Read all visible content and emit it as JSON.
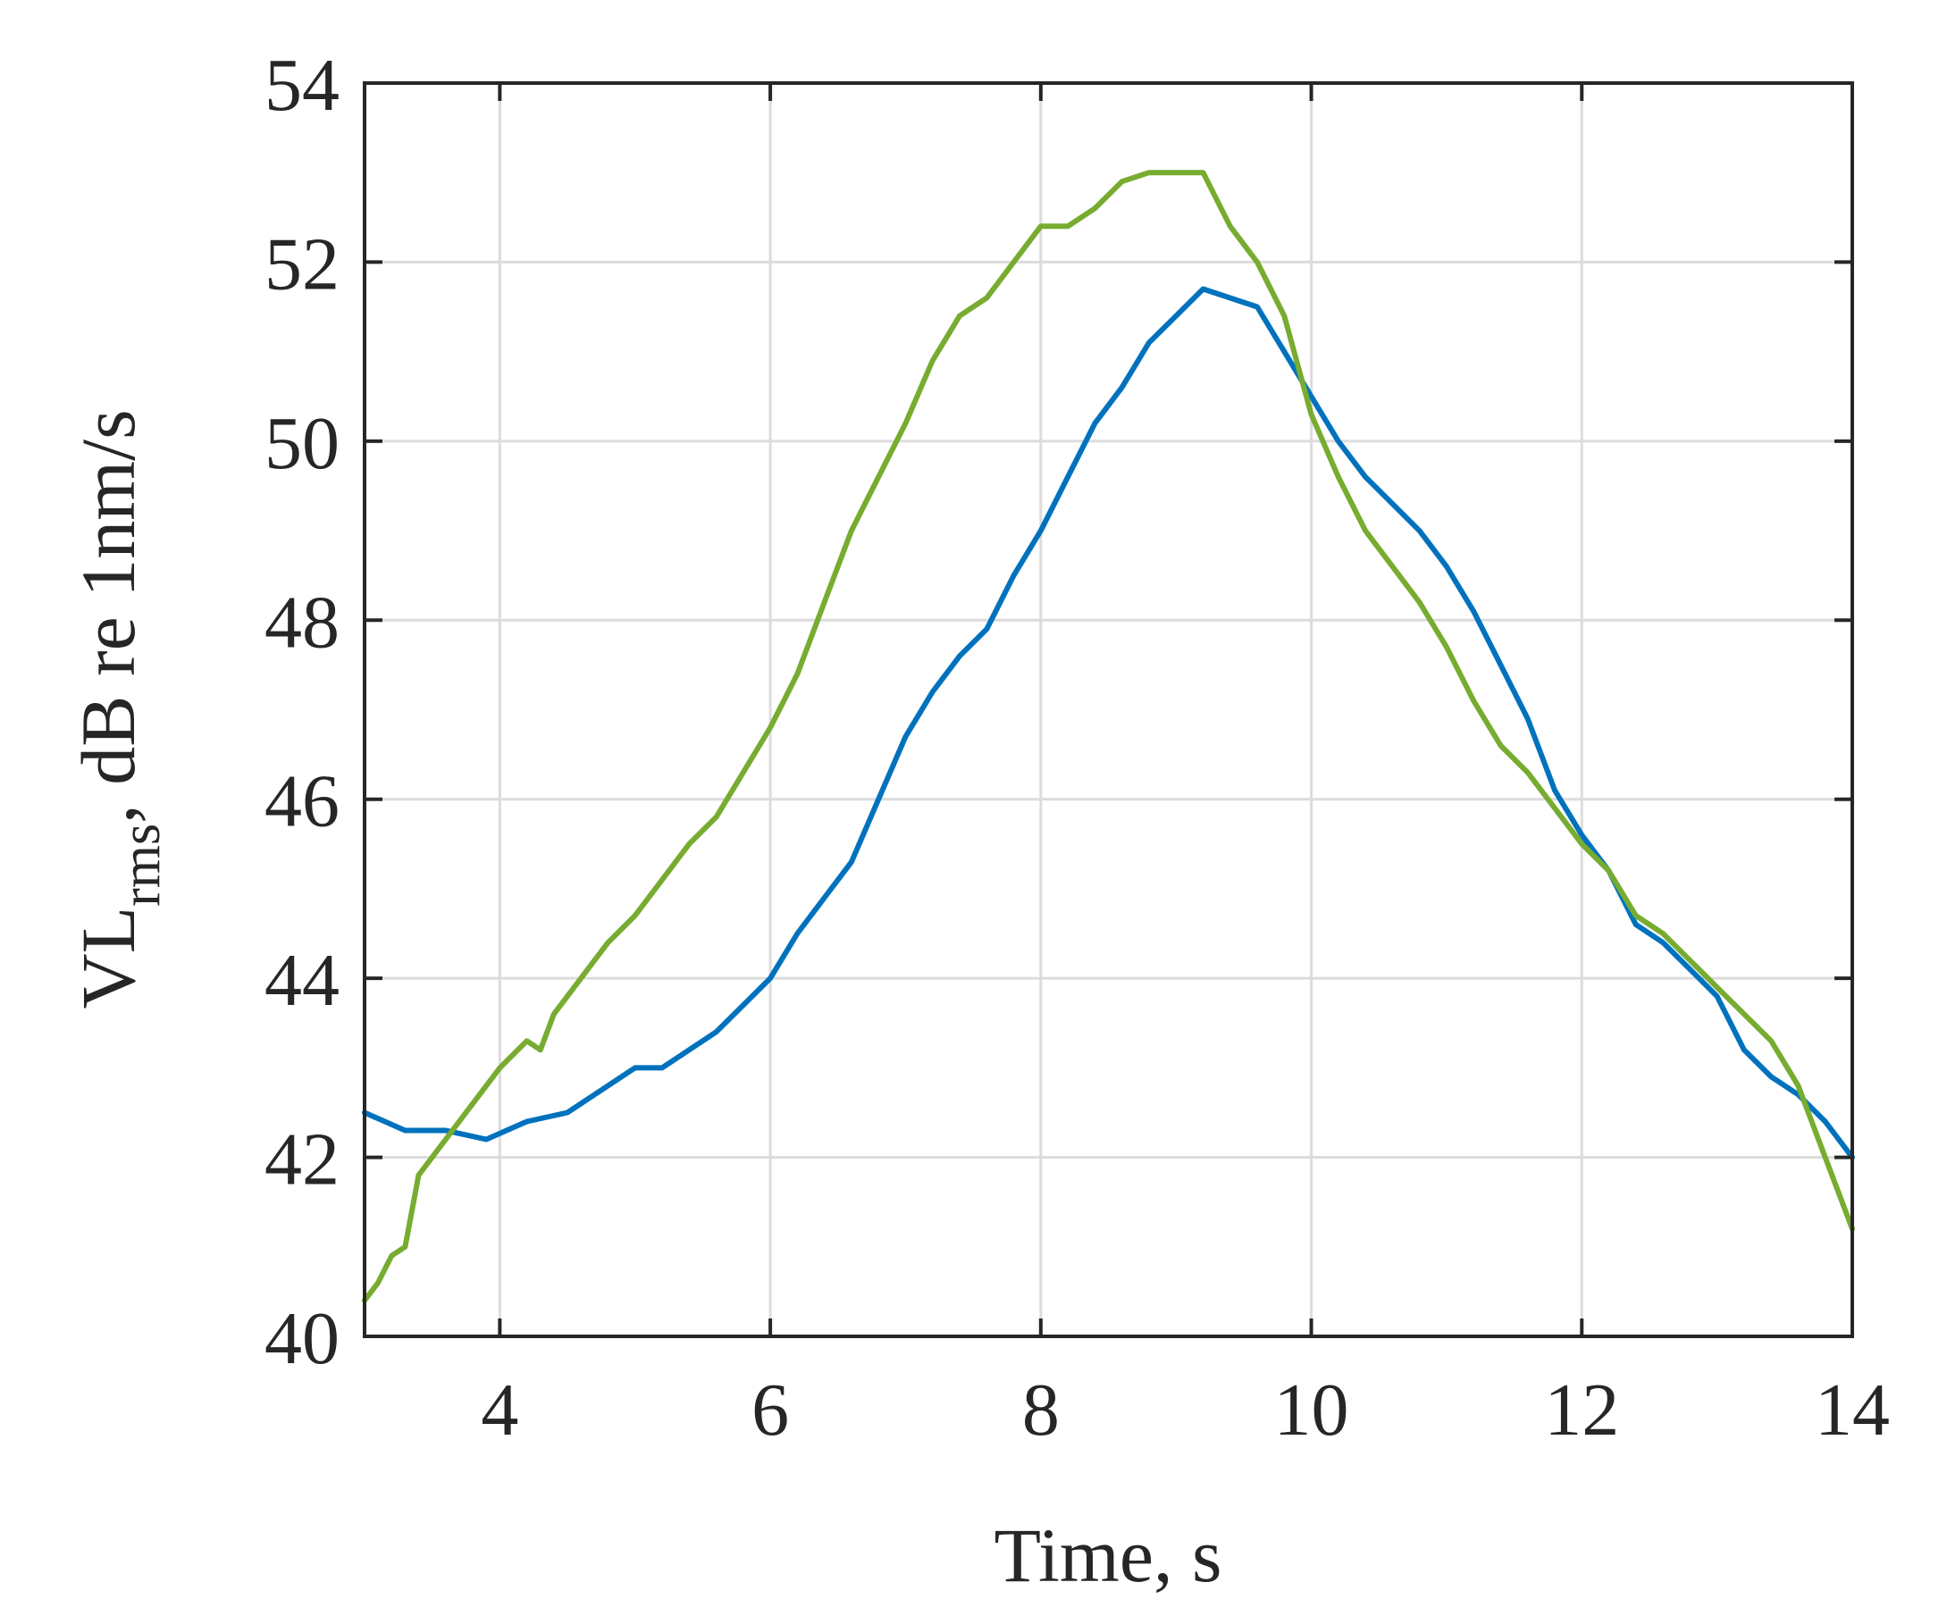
{
  "chart_data": {
    "type": "line",
    "title": "",
    "xlabel": "Time, s",
    "ylabel": {
      "main": "VL",
      "subscript": "rms",
      "rest": ", dB re 1nm/s"
    },
    "xlim": [
      3,
      14
    ],
    "ylim": [
      40,
      54
    ],
    "xticks": [
      4,
      6,
      8,
      10,
      12,
      14
    ],
    "yticks": [
      40,
      42,
      44,
      46,
      48,
      50,
      52,
      54
    ],
    "grid": true,
    "legend": "none",
    "series": [
      {
        "color": "#0072BD",
        "x": [
          3.0,
          3.3,
          3.6,
          3.9,
          4.2,
          4.5,
          4.8,
          5.0,
          5.2,
          5.4,
          5.6,
          5.8,
          6.0,
          6.2,
          6.4,
          6.6,
          6.8,
          7.0,
          7.2,
          7.4,
          7.6,
          7.8,
          8.0,
          8.2,
          8.4,
          8.6,
          8.8,
          9.0,
          9.2,
          9.4,
          9.6,
          9.8,
          10.0,
          10.2,
          10.4,
          10.6,
          10.8,
          11.0,
          11.2,
          11.4,
          11.6,
          11.8,
          12.0,
          12.2,
          12.4,
          12.6,
          12.8,
          13.0,
          13.2,
          13.4,
          13.6,
          13.8,
          14.0
        ],
        "y": [
          42.5,
          42.3,
          42.3,
          42.2,
          42.4,
          42.5,
          42.8,
          43.0,
          43.0,
          43.2,
          43.4,
          43.7,
          44.0,
          44.5,
          44.9,
          45.3,
          46.0,
          46.7,
          47.2,
          47.6,
          47.9,
          48.5,
          49.0,
          49.6,
          50.2,
          50.6,
          51.1,
          51.4,
          51.7,
          51.6,
          51.5,
          51.0,
          50.5,
          50.0,
          49.6,
          49.3,
          49.0,
          48.6,
          48.1,
          47.5,
          46.9,
          46.1,
          45.6,
          45.2,
          44.6,
          44.4,
          44.1,
          43.8,
          43.2,
          42.9,
          42.7,
          42.4,
          42.0
        ]
      },
      {
        "color": "#77AC30",
        "x": [
          3.0,
          3.1,
          3.2,
          3.3,
          3.4,
          3.6,
          3.8,
          4.0,
          4.2,
          4.3,
          4.4,
          4.6,
          4.8,
          5.0,
          5.2,
          5.4,
          5.6,
          5.8,
          6.0,
          6.2,
          6.4,
          6.6,
          6.8,
          7.0,
          7.2,
          7.4,
          7.6,
          7.8,
          8.0,
          8.2,
          8.4,
          8.6,
          8.8,
          9.0,
          9.2,
          9.4,
          9.6,
          9.8,
          10.0,
          10.2,
          10.4,
          10.6,
          10.8,
          11.0,
          11.2,
          11.4,
          11.6,
          11.8,
          12.0,
          12.2,
          12.4,
          12.6,
          12.8,
          13.0,
          13.2,
          13.4,
          13.6,
          13.8,
          14.0
        ],
        "y": [
          40.4,
          40.6,
          40.9,
          41.0,
          41.8,
          42.2,
          42.6,
          43.0,
          43.3,
          43.2,
          43.6,
          44.0,
          44.4,
          44.7,
          45.1,
          45.5,
          45.8,
          46.3,
          46.8,
          47.4,
          48.2,
          49.0,
          49.6,
          50.2,
          50.9,
          51.4,
          51.6,
          52.0,
          52.4,
          52.4,
          52.6,
          52.9,
          53.0,
          53.0,
          53.0,
          52.4,
          52.0,
          51.4,
          50.3,
          49.6,
          49.0,
          48.6,
          48.2,
          47.7,
          47.1,
          46.6,
          46.3,
          45.9,
          45.5,
          45.2,
          44.7,
          44.5,
          44.2,
          43.9,
          43.6,
          43.3,
          42.8,
          42.0,
          41.2
        ]
      }
    ]
  }
}
